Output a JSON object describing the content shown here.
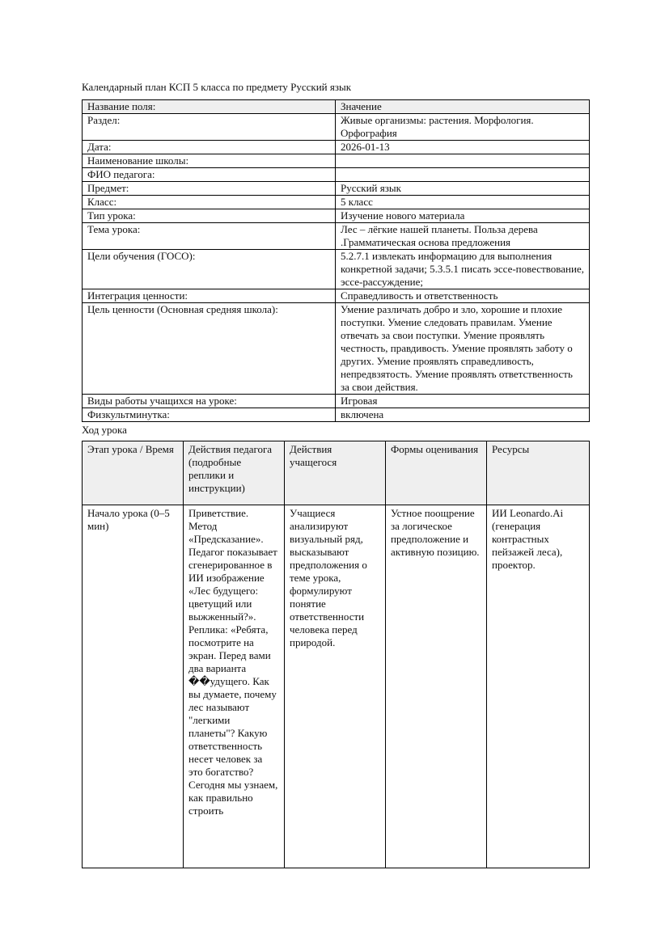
{
  "title": "Календарный план КСП 5 класса по предмету Русский язык",
  "info_table": {
    "header": [
      "Название поля:",
      "Значение"
    ],
    "rows": [
      [
        "Раздел:",
        "Живые организмы: растения. Морфология. Орфография"
      ],
      [
        "Дата:",
        "2026-01-13"
      ],
      [
        "Наименование школы:",
        ""
      ],
      [
        "ФИО педагога:",
        ""
      ],
      [
        "Предмет:",
        "Русский язык"
      ],
      [
        "Класс:",
        "5 класс"
      ],
      [
        "Тип урока:",
        "Изучение нового материала"
      ],
      [
        "Тема урока:",
        "Лес – лёгкие нашей планеты. Польза дерева .Грамматическая основа предложения"
      ],
      [
        "Цели обучения (ГОСО):",
        "5.2.7.1 извлекать информацию для выполнения конкретной задачи; 5.3.5.1 писать эссе-повествование, эссе-рассуждение;"
      ],
      [
        "Интеграция ценности:",
        "Справедливость и ответственность"
      ],
      [
        "Цель ценности (Основная средняя школа):",
        "Умение различать добро и зло, хорошие и плохие поступки. Умение следовать правилам. Умение отвечать за свои поступки. Умение проявлять честность, правдивость. Умение проявлять заботу о других. Умение проявлять справедливость, непредвзятость. Умение проявлять ответственность за свои действия."
      ],
      [
        "Виды работы учащихся на уроке:",
        "Игровая"
      ],
      [
        "Физкультминутка:",
        "включена"
      ]
    ]
  },
  "lesson_heading": "Ход урока",
  "lesson_table": {
    "header": [
      "Этап урока / Время",
      "Действия педагога (подробные реплики и инструкции)",
      "Действия учащегося",
      "Формы оценивания",
      "Ресурсы"
    ],
    "rows": [
      [
        "Начало урока (0–5 мин)",
        "Приветствие. Метод «Предсказание». Педагог показывает сгенерированное в ИИ изображение «Лес будущего: цветущий или выжженный?». Реплика: «Ребята, посмотрите на экран. Перед вами два варианта ��удущего. Как вы думаете, почему лес называют \"легкими планеты\"? Какую ответственность несет человек за это богатство? Сегодня мы узнаем, как правильно строить",
        "Учащиеся анализируют визуальный ряд, высказывают предположения о теме урока, формулируют понятие ответственности человека перед природой.",
        "Устное поощрение за логическое предположение и активную позицию.",
        "ИИ Leonardo.Ai (генерация контрастных пейзажей леса), проектор."
      ]
    ]
  }
}
